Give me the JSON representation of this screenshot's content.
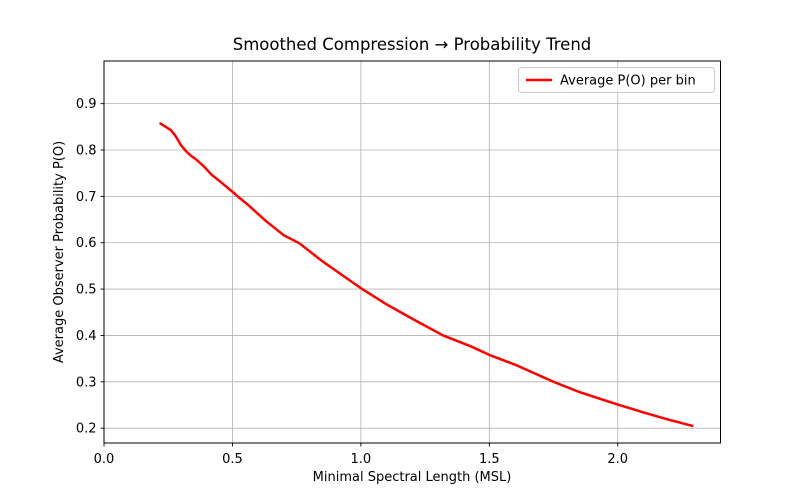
{
  "chart_data": {
    "type": "line",
    "title": "Smoothed Compression → Probability Trend",
    "xlabel": "Minimal Spectral Length (MSL)",
    "ylabel": "Average Observer Probability P(O)",
    "legend": [
      "Average P(O) per bin"
    ],
    "legend_position": "upper right",
    "grid": true,
    "grid_color": "#b0b0b0",
    "xlim": [
      0.0,
      2.4
    ],
    "ylim": [
      0.168,
      0.992
    ],
    "xticks": [
      0.0,
      0.5,
      1.0,
      1.5,
      2.0
    ],
    "xtick_labels": [
      "0.0",
      "0.5",
      "1.0",
      "1.5",
      "2.0"
    ],
    "yticks": [
      0.2,
      0.3,
      0.4,
      0.5,
      0.6,
      0.7,
      0.8,
      0.9
    ],
    "ytick_labels": [
      "0.2",
      "0.3",
      "0.4",
      "0.5",
      "0.6",
      "0.7",
      "0.8",
      "0.9"
    ],
    "series": [
      {
        "name": "Average P(O) per bin",
        "color": "#ff0000",
        "linewidth": 2.5,
        "points": [
          [
            0.22,
            0.857
          ],
          [
            0.24,
            0.85
          ],
          [
            0.26,
            0.843
          ],
          [
            0.28,
            0.829
          ],
          [
            0.3,
            0.81
          ],
          [
            0.32,
            0.797
          ],
          [
            0.34,
            0.787
          ],
          [
            0.36,
            0.779
          ],
          [
            0.39,
            0.764
          ],
          [
            0.42,
            0.746
          ],
          [
            0.45,
            0.733
          ],
          [
            0.5,
            0.71
          ],
          [
            0.52,
            0.7
          ],
          [
            0.56,
            0.682
          ],
          [
            0.63,
            0.647
          ],
          [
            0.7,
            0.616
          ],
          [
            0.76,
            0.599
          ],
          [
            0.85,
            0.56
          ],
          [
            0.93,
            0.529
          ],
          [
            1.0,
            0.502
          ],
          [
            1.1,
            0.467
          ],
          [
            1.2,
            0.436
          ],
          [
            1.32,
            0.4
          ],
          [
            1.43,
            0.376
          ],
          [
            1.5,
            0.358
          ],
          [
            1.6,
            0.337
          ],
          [
            1.75,
            0.3
          ],
          [
            1.85,
            0.278
          ],
          [
            2.0,
            0.251
          ],
          [
            2.1,
            0.234
          ],
          [
            2.2,
            0.218
          ],
          [
            2.29,
            0.205
          ]
        ]
      }
    ]
  }
}
